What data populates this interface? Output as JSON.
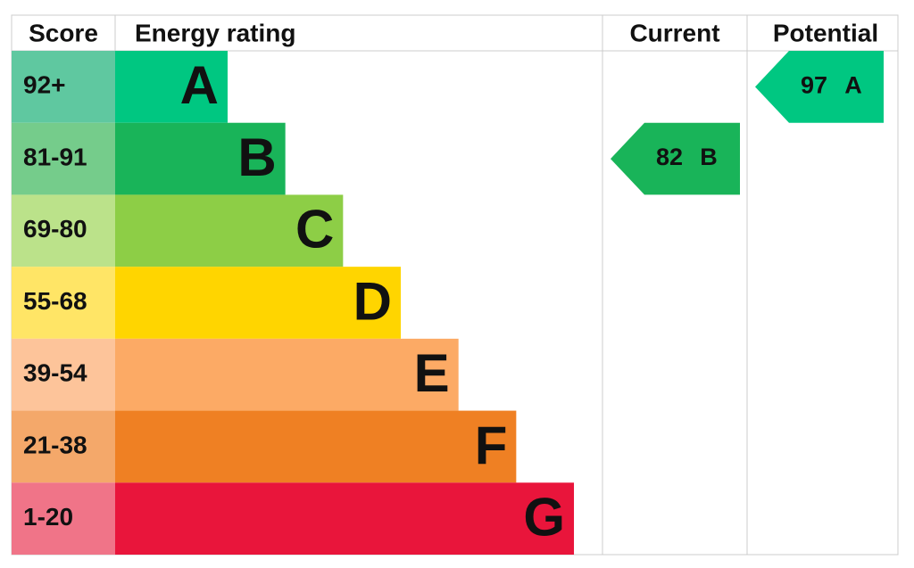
{
  "header": {
    "score": "Score",
    "rating": "Energy rating",
    "current": "Current",
    "potential": "Potential"
  },
  "bands": [
    {
      "score": "92+",
      "letter": "A",
      "color": "#00c781",
      "score_color": "#5fc8a0"
    },
    {
      "score": "81-91",
      "letter": "B",
      "color": "#19b459",
      "score_color": "#75cc8b"
    },
    {
      "score": "69-80",
      "letter": "C",
      "color": "#8dce46",
      "score_color": "#bbe28a"
    },
    {
      "score": "55-68",
      "letter": "D",
      "color": "#ffd500",
      "score_color": "#ffe566"
    },
    {
      "score": "39-54",
      "letter": "E",
      "color": "#fcaa65",
      "score_color": "#fdc49a"
    },
    {
      "score": "21-38",
      "letter": "F",
      "color": "#ef8023",
      "score_color": "#f4a86a"
    },
    {
      "score": "1-20",
      "letter": "G",
      "color": "#e9153b",
      "score_color": "#f07488"
    }
  ],
  "current": {
    "value": 82,
    "letter": "B"
  },
  "potential": {
    "value": 97,
    "letter": "A"
  }
}
